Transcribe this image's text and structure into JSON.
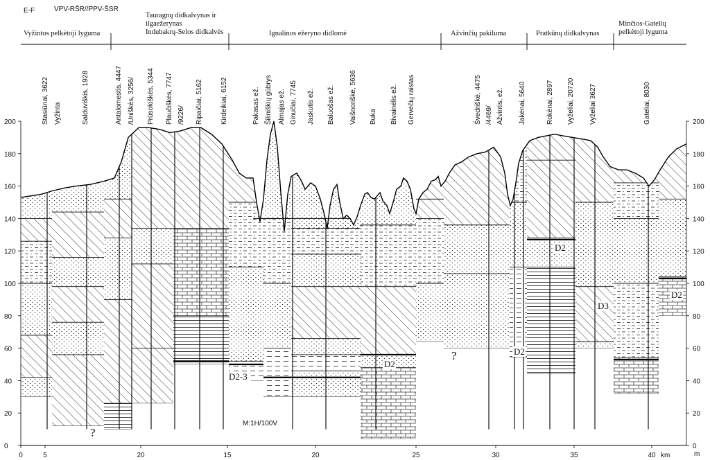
{
  "header": {
    "section_id": "E-F",
    "profile_code": "VPV-RŠR//PPV-ŠSR"
  },
  "regions": [
    {
      "lines": [
        "Vyžintos pelkėtoji lyguma"
      ]
    },
    {
      "lines": [
        "Tauragnų didkalvynas ir",
        "ilgaežerynas",
        "Indubakrų-Selos didkalvės"
      ]
    },
    {
      "lines": [
        "Ignalinos ežeryno didlomė"
      ]
    },
    {
      "lines": [
        "Ažvinčių pakiluma"
      ]
    },
    {
      "lines": [
        "Pratkūnų didkalvynas"
      ]
    },
    {
      "lines": [
        "Minčios-Gatelių",
        "pelkėtoji lyguma"
      ]
    }
  ],
  "wells": [
    {
      "label": "Stasiūnai, 3622"
    },
    {
      "label": "Vyžinta"
    },
    {
      "label": "Salduviškis, 1928"
    },
    {
      "label": "Antalomestis, 4447"
    },
    {
      "label": "/Uniškės, 3256/"
    },
    {
      "label": "Prūsokiškės, 5344"
    },
    {
      "label": "Plaučiškės, 7747"
    },
    {
      "label": "/9226/"
    },
    {
      "label": "Ripaičiai, 5162"
    },
    {
      "label": "Kirdeikiai, 6152"
    },
    {
      "label": "Pakasas ež."
    },
    {
      "label": "Šiliniškių gūbrys"
    },
    {
      "label": "Almajas ež."
    },
    {
      "label": "Ginučiai, 7745"
    },
    {
      "label": "Jaskutis ež."
    },
    {
      "label": "Baluošas ež."
    },
    {
      "label": "Vaišnoriškė, 5636"
    },
    {
      "label": "Buka"
    },
    {
      "label": "Bivainėlis ež."
    },
    {
      "label": "Gervėčių raistas"
    },
    {
      "label": "Švedriškė, 4475"
    },
    {
      "label": "/4469/"
    },
    {
      "label": "Ažvintis, ež."
    },
    {
      "label": "Jakėnai, 5640"
    },
    {
      "label": "Rokėnai, 2897"
    },
    {
      "label": "Vyželiai, 20720"
    },
    {
      "label": "Vyželiai 3627"
    },
    {
      "label": "Gateliai, 8030"
    }
  ],
  "elevation_axis": {
    "unit": "m",
    "ticks": [
      "200",
      "180",
      "160",
      "140",
      "120",
      "100",
      "80",
      "60",
      "40",
      "20",
      "0"
    ]
  },
  "distance_axis": {
    "unit": "km",
    "ticks": [
      "0",
      "5",
      "10",
      "15",
      "20",
      "25",
      "30",
      "35",
      "40"
    ]
  },
  "scale_note": "M:1H/100V",
  "annotations": [
    {
      "text": "D2-3"
    },
    {
      "text": "D2"
    },
    {
      "text": "D2"
    },
    {
      "text": "D2"
    },
    {
      "text": "D3"
    },
    {
      "text": "D2"
    },
    {
      "text": "?"
    },
    {
      "text": "?"
    }
  ],
  "colors": {
    "ink": "#111111",
    "paper": "#ffffff"
  }
}
